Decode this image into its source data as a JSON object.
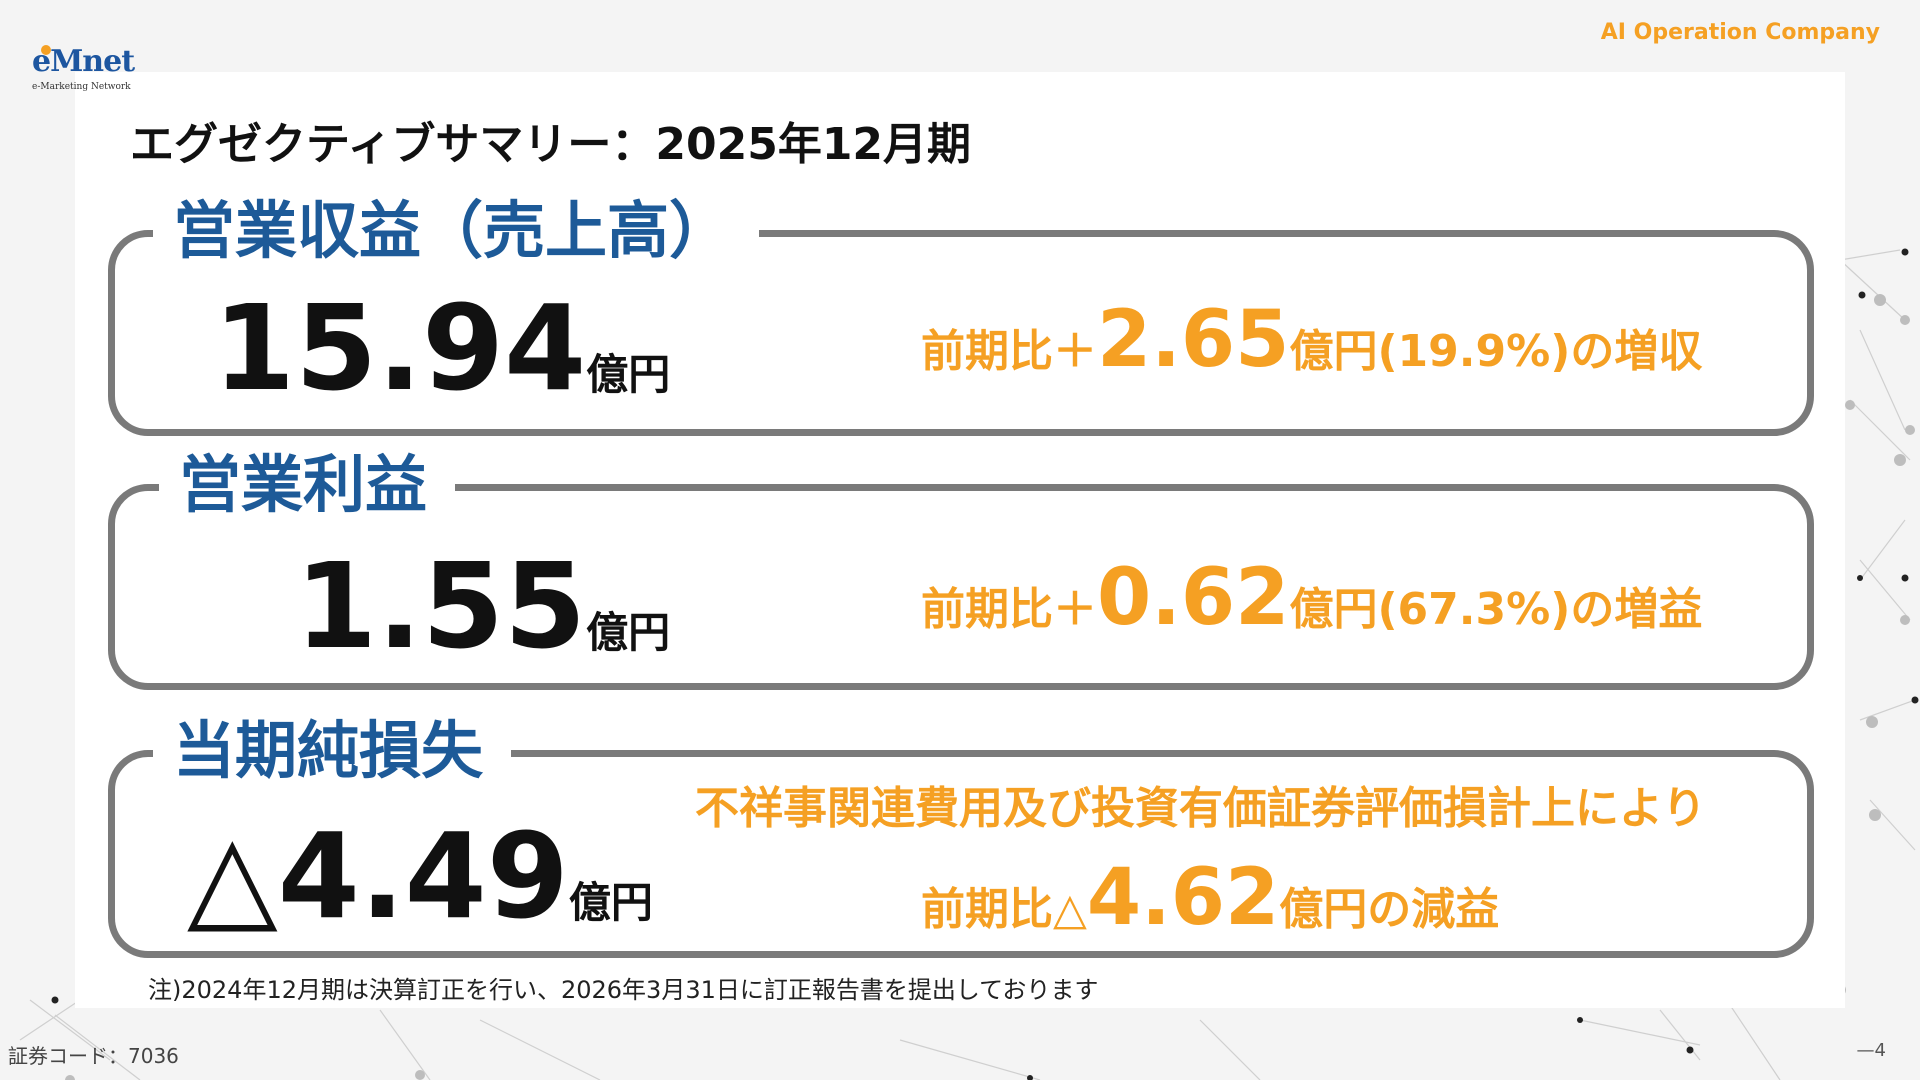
{
  "header": {
    "company_tagline": "AI Operation Company",
    "logo_text": "eMnet",
    "logo_subtext": "e-Marketing Network"
  },
  "title": "エグゼクティブサマリー：2025年12月期",
  "cards": {
    "revenue": {
      "label": "営業収益（売上高）",
      "value": "15.94",
      "unit": "億円",
      "cmp_prefix": "前期比＋",
      "cmp_value": "2.65",
      "cmp_suffix": "億円(19.9%)の増収"
    },
    "operating_profit": {
      "label": "営業利益",
      "value": "1.55",
      "unit": "億円",
      "cmp_prefix": "前期比＋",
      "cmp_value": "0.62",
      "cmp_suffix": "億円(67.3%)の増益"
    },
    "net_loss": {
      "label": "当期純損失",
      "value": "△4.49",
      "unit": "億円",
      "reason": "不祥事関連費用及び投資有価証券評価損計上により",
      "cmp_prefix": "前期比△",
      "cmp_value": "4.62",
      "cmp_suffix": "億円の減益"
    }
  },
  "note": "注)2024年12月期は決算訂正を行い、2026年3月31日に訂正報告書を提出しております",
  "footer": {
    "securities_code": "証券コード：7036",
    "page_number": "—4"
  },
  "colors": {
    "accent_orange": "#f5a023",
    "label_blue": "#1d5a98",
    "border_gray": "#7a7a7a"
  }
}
